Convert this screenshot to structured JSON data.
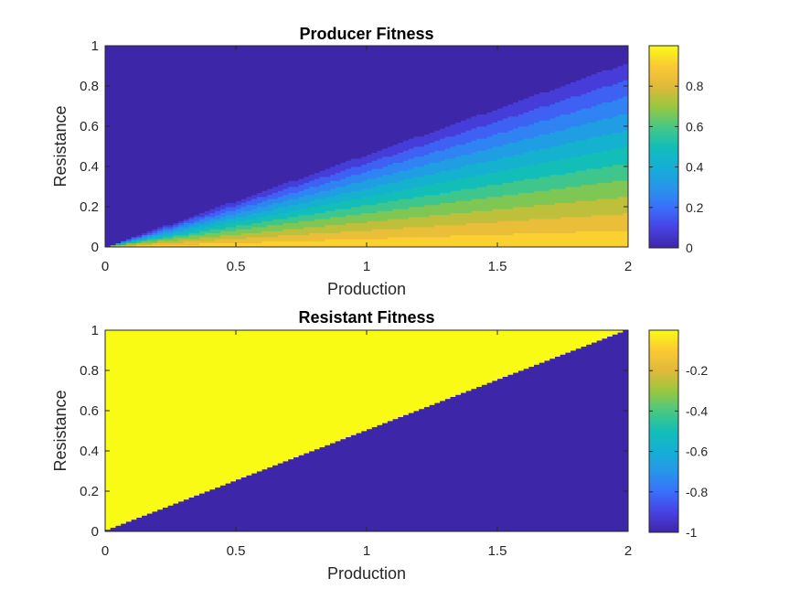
{
  "chart_data": [
    {
      "type": "heatmap",
      "title": "Producer Fitness",
      "xlabel": "Production",
      "ylabel": "Resistance",
      "xlim": [
        0,
        2
      ],
      "ylim": [
        0,
        1
      ],
      "xticks": [
        "0",
        "0.5",
        "1",
        "1.5",
        "2"
      ],
      "yticks": [
        "0",
        "0.2",
        "0.4",
        "0.6",
        "0.8",
        "1"
      ],
      "colorbar": {
        "ticks": [
          "0",
          "0.2",
          "0.4",
          "0.6",
          "0.8"
        ],
        "range": [
          0,
          1
        ]
      },
      "colormap": "parula",
      "grid": false,
      "pattern": "value ≈ 1 − resistance/(production/2) inside lower-right wedge (resistance < production/2), 0 elsewhere"
    },
    {
      "type": "heatmap",
      "title": "Resistant Fitness",
      "xlabel": "Production",
      "ylabel": "Resistance",
      "xlim": [
        0,
        2
      ],
      "ylim": [
        0,
        1
      ],
      "xticks": [
        "0",
        "0.5",
        "1",
        "1.5",
        "2"
      ],
      "yticks": [
        "0",
        "0.2",
        "0.4",
        "0.6",
        "0.8",
        "1"
      ],
      "colorbar": {
        "ticks": [
          "-0.2",
          "-0.4",
          "-0.6",
          "-0.8",
          "-1"
        ],
        "range": [
          -1,
          0
        ]
      },
      "colormap": "parula",
      "grid": false,
      "pattern": "value = 0 where resistance > production/2, −1 where resistance < production/2"
    }
  ],
  "colors": {
    "parula_low": "#3d26a8",
    "parula_high": "#f9fb15"
  }
}
